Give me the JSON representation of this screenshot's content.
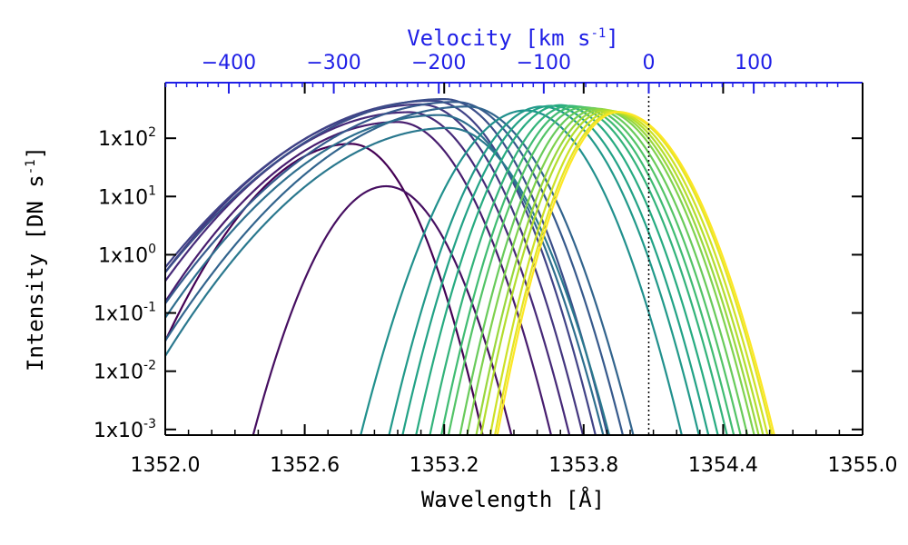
{
  "chart_data": {
    "type": "line",
    "xlabel": "Wavelength [Å]",
    "ylabel_text": "Intensity [DN s",
    "ylabel_exp": "-1",
    "ylabel_close": "]",
    "top_axis": {
      "label_text": "Velocity [km s",
      "label_exp": "-1",
      "label_close": "]",
      "ticks": [
        -400,
        -300,
        -200,
        -100,
        0,
        100
      ],
      "tick_labels": [
        "−400",
        "−300",
        "−200",
        "−100",
        "0",
        "100"
      ],
      "rest_wavelength": 1354.08,
      "color": "#1f1fe6"
    },
    "xlim": [
      1352.0,
      1355.0
    ],
    "x_ticks": [
      1352.0,
      1352.6,
      1353.2,
      1353.8,
      1354.4,
      1355.0
    ],
    "x_tick_labels": [
      "1352.0",
      "1352.6",
      "1353.2",
      "1353.8",
      "1354.4",
      "1355.0"
    ],
    "y_scale": "log",
    "ylim": [
      0.0008,
      900
    ],
    "y_ticks": [
      0.001,
      0.01,
      0.1,
      1,
      10,
      100
    ],
    "y_tick_labels": [
      {
        "base": "1x10",
        "exp": "-3"
      },
      {
        "base": "1x10",
        "exp": "-2"
      },
      {
        "base": "1x10",
        "exp": "-1"
      },
      {
        "base": "1x10",
        "exp": "0"
      },
      {
        "base": "1x10",
        "exp": "1"
      },
      {
        "base": "1x10",
        "exp": "2"
      }
    ],
    "reference_line": {
      "x": 1354.08,
      "style": "dotted"
    },
    "colors": {
      "early": [
        "#440154",
        "#482374",
        "#404387",
        "#345f8d",
        "#2a788e"
      ],
      "late": [
        "#21908d",
        "#22a784",
        "#42be71",
        "#7ad151",
        "#bddf26",
        "#fde725"
      ]
    },
    "series": [
      {
        "peak_x": 1352.8,
        "peak_y": 80,
        "width_l": 0.55,
        "width_r": 0.32
      },
      {
        "peak_x": 1352.95,
        "peak_y": 15,
        "width_l": 0.35,
        "width_r": 0.33
      },
      {
        "peak_x": 1353.0,
        "peak_y": 190,
        "width_l": 0.72,
        "width_r": 0.36
      },
      {
        "peak_x": 1353.05,
        "peak_y": 280,
        "width_l": 0.78,
        "width_r": 0.37
      },
      {
        "peak_x": 1353.1,
        "peak_y": 380,
        "width_l": 0.82,
        "width_r": 0.37
      },
      {
        "peak_x": 1353.15,
        "peak_y": 440,
        "width_l": 0.86,
        "width_r": 0.37
      },
      {
        "peak_x": 1353.2,
        "peak_y": 470,
        "width_l": 0.88,
        "width_r": 0.37
      },
      {
        "peak_x": 1353.25,
        "peak_y": 420,
        "width_l": 0.85,
        "width_r": 0.38
      },
      {
        "peak_x": 1353.3,
        "peak_y": 350,
        "width_l": 0.82,
        "width_r": 0.38
      },
      {
        "peak_x": 1353.18,
        "peak_y": 250,
        "width_l": 0.8,
        "width_r": 0.38
      },
      {
        "peak_x": 1353.22,
        "peak_y": 150,
        "width_l": 0.78,
        "width_r": 0.38
      },
      {
        "peak_x": 1353.55,
        "peak_y": 300,
        "width_l": 0.38,
        "width_r": 0.36
      },
      {
        "peak_x": 1353.62,
        "peak_y": 350,
        "width_l": 0.35,
        "width_r": 0.36
      },
      {
        "peak_x": 1353.66,
        "peak_y": 360,
        "width_l": 0.34,
        "width_r": 0.36
      },
      {
        "peak_x": 1353.7,
        "peak_y": 370,
        "width_l": 0.33,
        "width_r": 0.36
      },
      {
        "peak_x": 1353.74,
        "peak_y": 360,
        "width_l": 0.32,
        "width_r": 0.36
      },
      {
        "peak_x": 1353.77,
        "peak_y": 350,
        "width_l": 0.31,
        "width_r": 0.36
      },
      {
        "peak_x": 1353.8,
        "peak_y": 340,
        "width_l": 0.31,
        "width_r": 0.36
      },
      {
        "peak_x": 1353.83,
        "peak_y": 330,
        "width_l": 0.3,
        "width_r": 0.36
      },
      {
        "peak_x": 1353.86,
        "peak_y": 320,
        "width_l": 0.3,
        "width_r": 0.36
      },
      {
        "peak_x": 1353.88,
        "peak_y": 310,
        "width_l": 0.29,
        "width_r": 0.36
      },
      {
        "peak_x": 1353.9,
        "peak_y": 300,
        "width_l": 0.29,
        "width_r": 0.36
      },
      {
        "peak_x": 1353.92,
        "peak_y": 290,
        "width_l": 0.28,
        "width_r": 0.36
      },
      {
        "peak_x": 1353.94,
        "peak_y": 285,
        "width_l": 0.28,
        "width_r": 0.36
      },
      {
        "peak_x": 1353.95,
        "peak_y": 280,
        "width_l": 0.28,
        "width_r": 0.36
      }
    ]
  }
}
